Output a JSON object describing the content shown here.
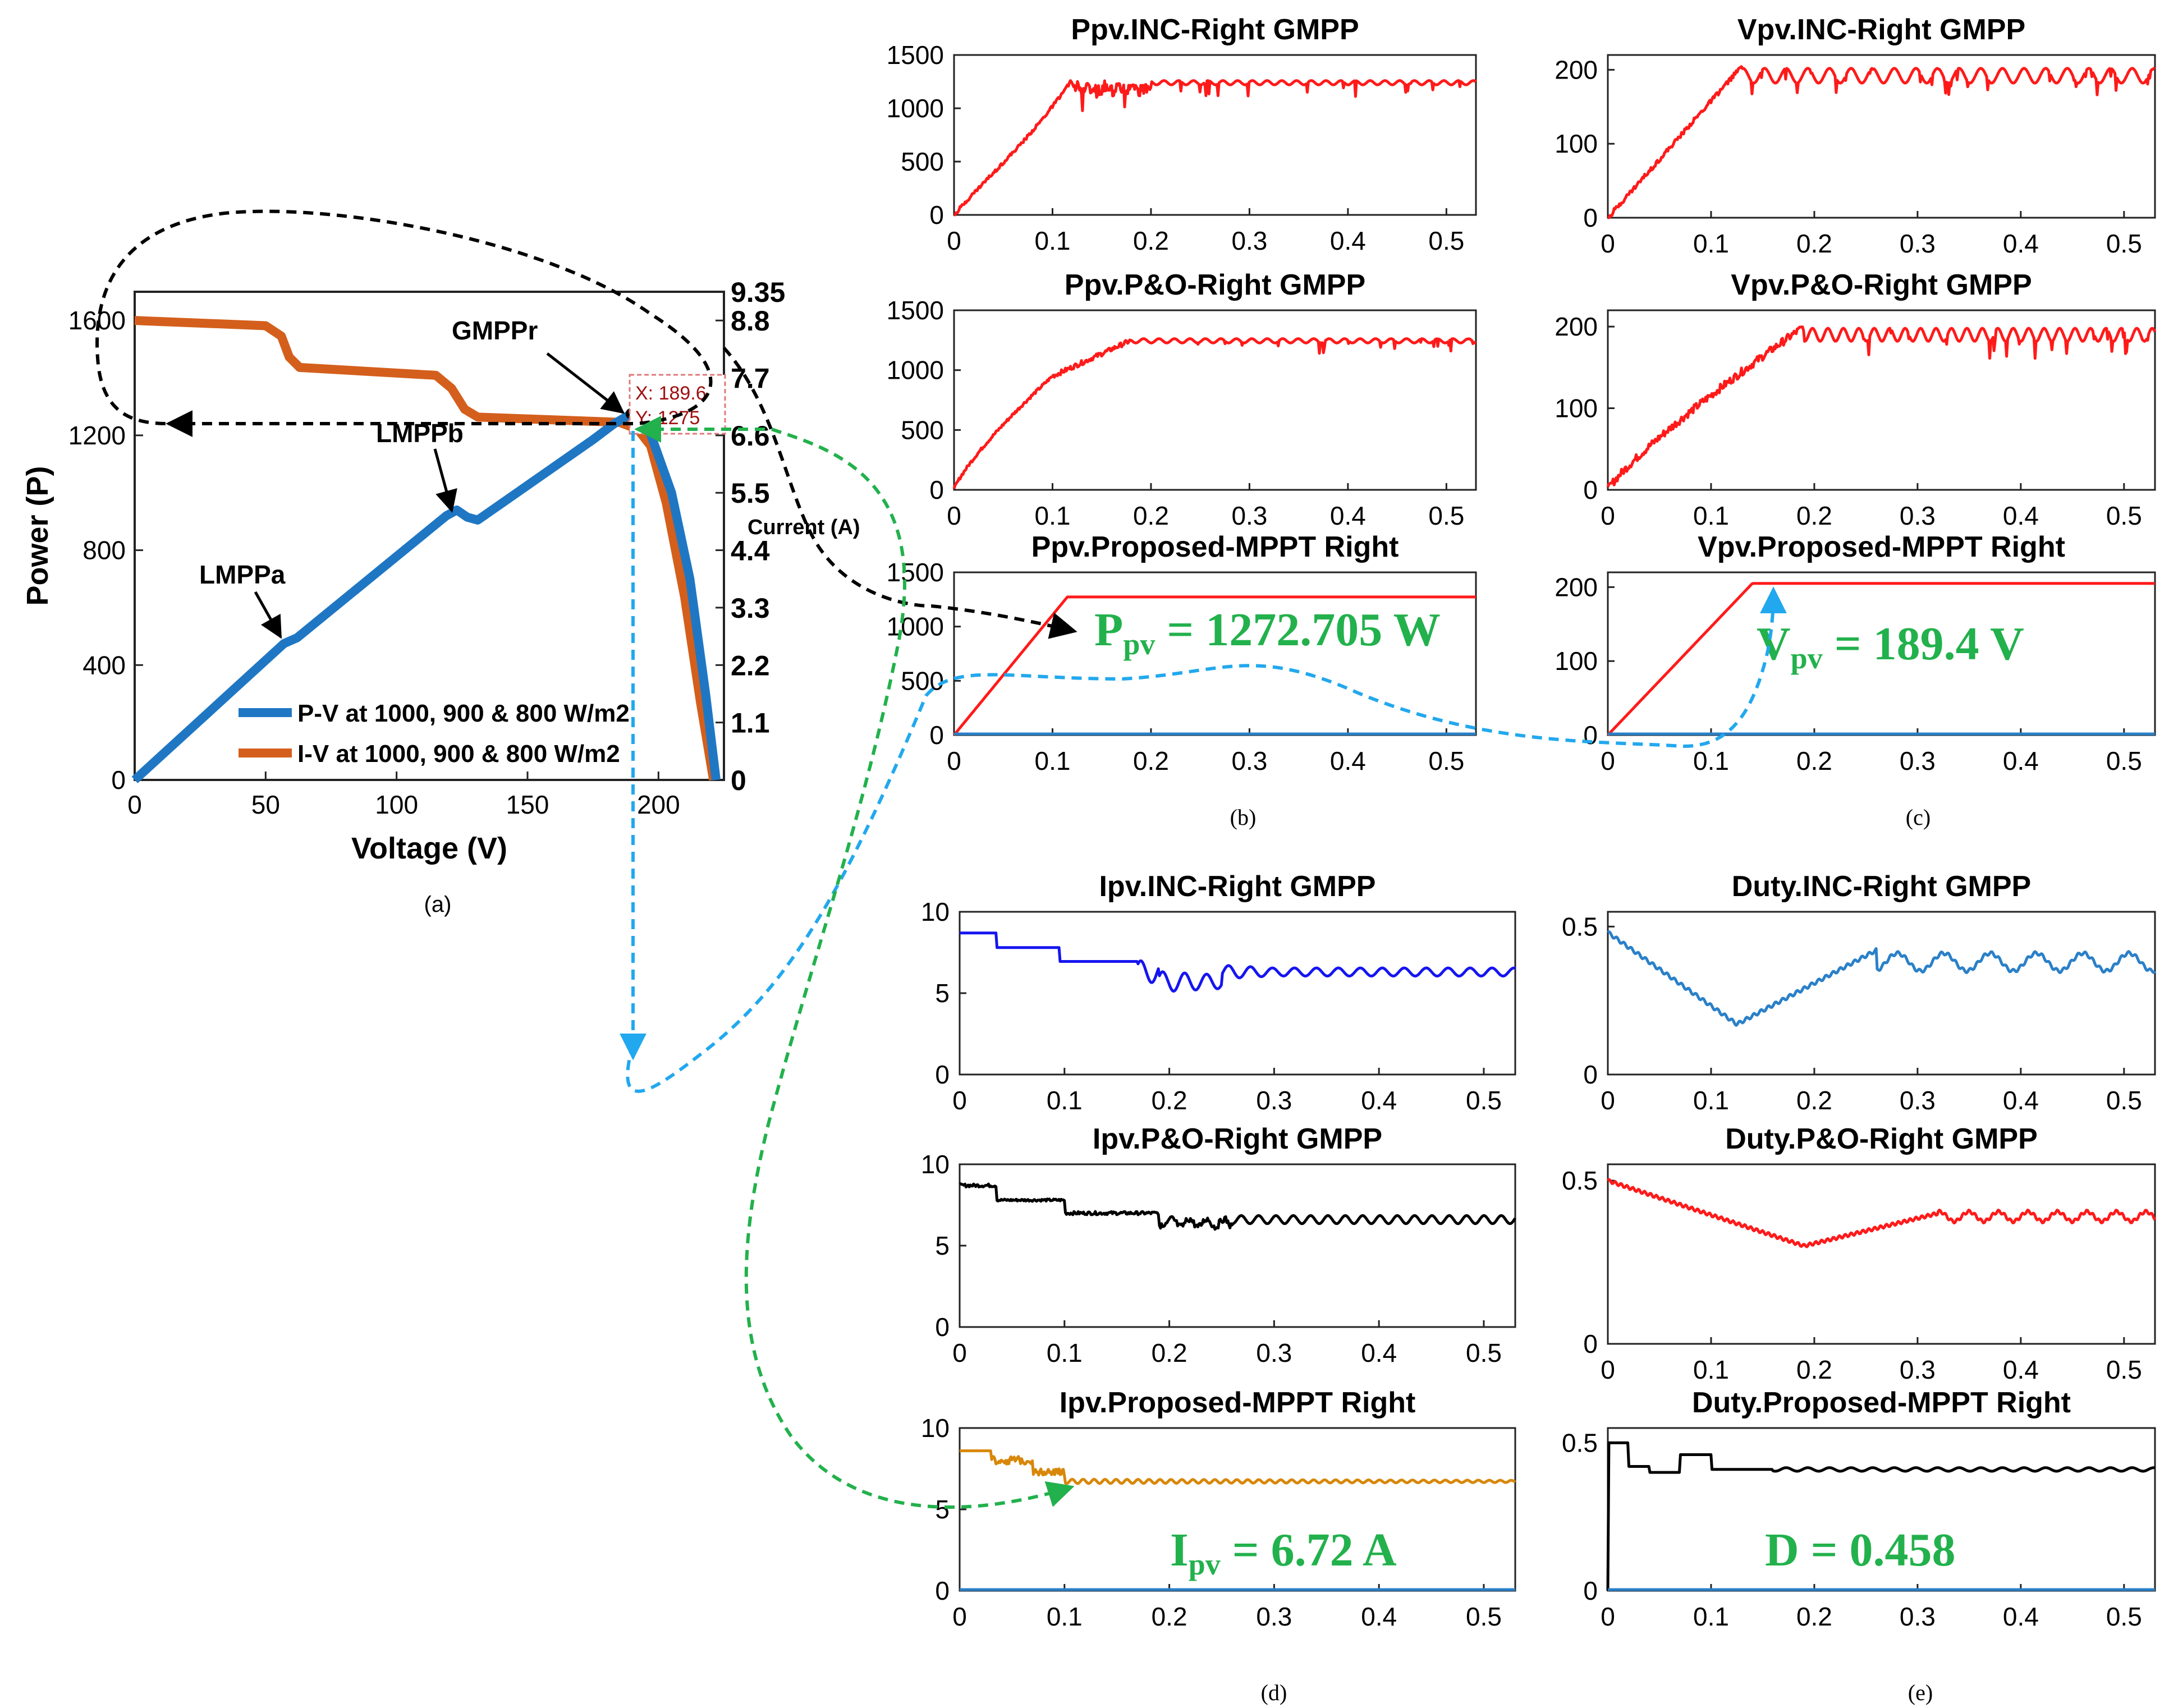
{
  "colors": {
    "blue": "#1f77c4",
    "orange": "#d45f1c",
    "red": "#ff1a1a",
    "navy": "#1515f0",
    "black": "#000000",
    "amber": "#d8870a",
    "green": "#22b14c",
    "cyan": "#22a8ee",
    "flat_blue": "#2a80c8",
    "dark_red": "#a01010"
  },
  "panel_a": {
    "caption": "(a)",
    "xlabel": "Voltage (V)",
    "ylabel": "Power (P)",
    "y2label": "Current (A)",
    "legend": [
      "P-V at 1000, 900 & 800 W/m2",
      "I-V at 1000, 900 & 800 W/m2"
    ],
    "x_ticks": [
      "0",
      "50",
      "100",
      "150",
      "200"
    ],
    "y_ticks": [
      "0",
      "400",
      "800",
      "1200",
      "1600"
    ],
    "y2_ticks": [
      "0",
      "1.1",
      "2.2",
      "3.3",
      "4.4",
      "5.5",
      "6.6",
      "7.7",
      "8.8",
      "9.35"
    ],
    "annotations": [
      "LMPPa",
      "LMPPb",
      "GMPPr"
    ],
    "datatip": [
      "X: 189.6",
      "Y: 1275"
    ]
  },
  "value_labels": {
    "ppv": {
      "sym": "P",
      "sub": "pv",
      "val": " = 1272.705 W"
    },
    "vpv": {
      "sym": "V",
      "sub": "pv",
      "val": " = 189.4 V"
    },
    "ipv": {
      "sym": "I",
      "sub": "pv",
      "val": " = 6.72 A"
    },
    "duty": {
      "text": "D = 0.458"
    }
  },
  "captions": {
    "b": "(b)",
    "c": "(c)",
    "d": "(d)",
    "e": "(e)"
  },
  "chart_data": [
    {
      "id": "a",
      "type": "line",
      "title": "",
      "xlabel": "Voltage (V)",
      "ylabel": "Power (P)",
      "y2label": "Current (A)",
      "xlim": [
        0,
        225
      ],
      "ylim": [
        0,
        1700
      ],
      "y2lim": [
        0,
        9.35
      ],
      "series": [
        {
          "name": "P-V at 1000, 900 & 800 W/m2",
          "axis": "left",
          "x": [
            0,
            57,
            62,
            119,
            123,
            127,
            131,
            175,
            183,
            189.6,
            196,
            205,
            212,
            218,
            222
          ],
          "y": [
            0,
            475,
            495,
            920,
            940,
            915,
            905,
            1185,
            1240,
            1275,
            1230,
            1000,
            700,
            300,
            0
          ]
        },
        {
          "name": "I-V at 1000, 900 & 800 W/m2",
          "axis": "right",
          "x": [
            0,
            50,
            56,
            59,
            63,
            115,
            121,
            126,
            131,
            185,
            192,
            197,
            203,
            210,
            216,
            221
          ],
          "y": [
            8.8,
            8.7,
            8.5,
            8.1,
            7.9,
            7.75,
            7.5,
            7.1,
            6.95,
            6.85,
            6.72,
            6.4,
            5.3,
            3.5,
            1.5,
            0
          ]
        }
      ]
    },
    {
      "id": "ppv_inc",
      "type": "line",
      "title": "Ppv.INC-Right GMPP",
      "xlim": [
        0,
        0.53
      ],
      "ylim": [
        0,
        1500
      ],
      "x_ticks": [
        0,
        0.1,
        0.2,
        0.3,
        0.4,
        0.5
      ],
      "y_ticks": [
        0,
        500,
        1000,
        1500
      ],
      "pattern": "ppv_inc",
      "color": "red"
    },
    {
      "id": "ppv_po",
      "type": "line",
      "title": "Ppv.P&O-Right GMPP",
      "xlim": [
        0,
        0.53
      ],
      "ylim": [
        0,
        1500
      ],
      "x_ticks": [
        0,
        0.1,
        0.2,
        0.3,
        0.4,
        0.5
      ],
      "y_ticks": [
        0,
        500,
        1000,
        1500
      ],
      "pattern": "ppv_po",
      "color": "red"
    },
    {
      "id": "ppv_prop",
      "type": "line",
      "title": "Ppv.Proposed-MPPT Right",
      "xlim": [
        0,
        0.53
      ],
      "ylim": [
        0,
        1500
      ],
      "x_ticks": [
        0,
        0.1,
        0.2,
        0.3,
        0.4,
        0.5
      ],
      "y_ticks": [
        0,
        500,
        1000,
        1500
      ],
      "pattern": "ppv_prop",
      "color": "red",
      "flat": true
    },
    {
      "id": "vpv_inc",
      "type": "line",
      "title": "Vpv.INC-Right GMPP",
      "xlim": [
        0,
        0.53
      ],
      "ylim": [
        0,
        220
      ],
      "x_ticks": [
        0,
        0.1,
        0.2,
        0.3,
        0.4,
        0.5
      ],
      "y_ticks": [
        0,
        100,
        200
      ],
      "pattern": "vpv_inc",
      "color": "red"
    },
    {
      "id": "vpv_po",
      "type": "line",
      "title": "Vpv.P&O-Right GMPP",
      "xlim": [
        0,
        0.53
      ],
      "ylim": [
        0,
        220
      ],
      "x_ticks": [
        0,
        0.1,
        0.2,
        0.3,
        0.4,
        0.5
      ],
      "y_ticks": [
        0,
        100,
        200
      ],
      "pattern": "vpv_po",
      "color": "red"
    },
    {
      "id": "vpv_prop",
      "type": "line",
      "title": "Vpv.Proposed-MPPT Right",
      "xlim": [
        0,
        0.53
      ],
      "ylim": [
        0,
        220
      ],
      "x_ticks": [
        0,
        0.1,
        0.2,
        0.3,
        0.4,
        0.5
      ],
      "y_ticks": [
        0,
        100,
        200
      ],
      "pattern": "vpv_prop",
      "color": "red",
      "flat": true
    },
    {
      "id": "ipv_inc",
      "type": "line",
      "title": "Ipv.INC-Right GMPP",
      "xlim": [
        0,
        0.53
      ],
      "ylim": [
        0,
        10
      ],
      "x_ticks": [
        0,
        0.1,
        0.2,
        0.3,
        0.4,
        0.5
      ],
      "y_ticks": [
        0,
        5,
        10
      ],
      "pattern": "ipv_inc",
      "color": "navy"
    },
    {
      "id": "ipv_po",
      "type": "line",
      "title": "Ipv.P&O-Right GMPP",
      "xlim": [
        0,
        0.53
      ],
      "ylim": [
        0,
        10
      ],
      "x_ticks": [
        0,
        0.1,
        0.2,
        0.3,
        0.4,
        0.5
      ],
      "y_ticks": [
        0,
        5,
        10
      ],
      "pattern": "ipv_po",
      "color": "black"
    },
    {
      "id": "ipv_prop",
      "type": "line",
      "title": "Ipv.Proposed-MPPT Right",
      "xlim": [
        0,
        0.53
      ],
      "ylim": [
        0,
        10
      ],
      "x_ticks": [
        0,
        0.1,
        0.2,
        0.3,
        0.4,
        0.5
      ],
      "y_ticks": [
        0,
        5,
        10
      ],
      "pattern": "ipv_prop",
      "color": "amber",
      "flat": true
    },
    {
      "id": "duty_inc",
      "type": "line",
      "title": "Duty.INC-Right GMPP",
      "xlim": [
        0,
        0.53
      ],
      "ylim": [
        0,
        0.55
      ],
      "x_ticks": [
        0,
        0.1,
        0.2,
        0.3,
        0.4,
        0.5
      ],
      "y_ticks": [
        0,
        0.5
      ],
      "pattern": "duty_inc",
      "color": "flat_blue"
    },
    {
      "id": "duty_po",
      "type": "line",
      "title": "Duty.P&O-Right GMPP",
      "xlim": [
        0,
        0.53
      ],
      "ylim": [
        0,
        0.55
      ],
      "x_ticks": [
        0,
        0.1,
        0.2,
        0.3,
        0.4,
        0.5
      ],
      "y_ticks": [
        0,
        0.5
      ],
      "pattern": "duty_po",
      "color": "red"
    },
    {
      "id": "duty_prop",
      "type": "line",
      "title": "Duty.Proposed-MPPT Right",
      "xlim": [
        0,
        0.53
      ],
      "ylim": [
        0,
        0.55
      ],
      "x_ticks": [
        0,
        0.1,
        0.2,
        0.3,
        0.4,
        0.5
      ],
      "y_ticks": [
        0,
        0.5
      ],
      "pattern": "duty_prop",
      "color": "black",
      "flat": true
    }
  ]
}
